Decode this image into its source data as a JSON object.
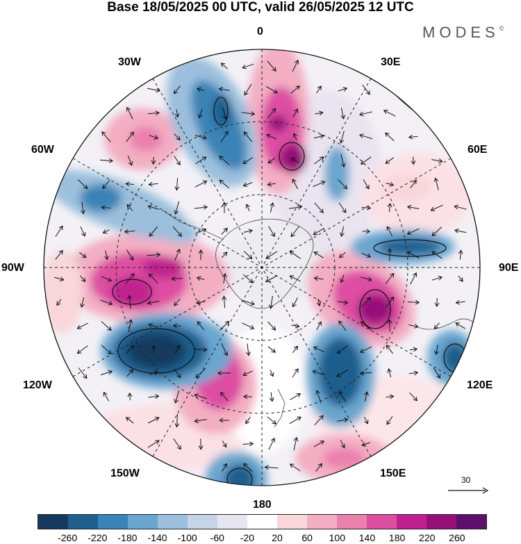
{
  "title": "Base 18/05/2025 00 UTC, valid 26/05/2025 12 UTC",
  "brand": {
    "text": "MODES",
    "mark": "©"
  },
  "longitude_labels": {
    "lon_0": "0",
    "lon_30e": "30E",
    "lon_60e": "60E",
    "lon_90e": "90E",
    "lon_120e": "120E",
    "lon_150e": "150E",
    "lon_180": "180",
    "lon_150w": "150W",
    "lon_120w": "120W",
    "lon_90w": "90W",
    "lon_60w": "60W",
    "lon_30w": "30W"
  },
  "reference_vector": {
    "label": "30"
  },
  "colorbar": {
    "colors": [
      "#163a5e",
      "#1f5f8e",
      "#3a83b6",
      "#6aa6cf",
      "#9bbfdd",
      "#c6d4e8",
      "#e6e6f2",
      "#ffffff",
      "#f8d6da",
      "#f3aec3",
      "#eb80ad",
      "#dd4ea2",
      "#c0208e",
      "#97107a",
      "#5e0e6b"
    ],
    "ticks": [
      "-260",
      "-220",
      "-180",
      "-140",
      "-100",
      "-60",
      "-20",
      "20",
      "60",
      "100",
      "140",
      "180",
      "220",
      "260"
    ]
  }
}
